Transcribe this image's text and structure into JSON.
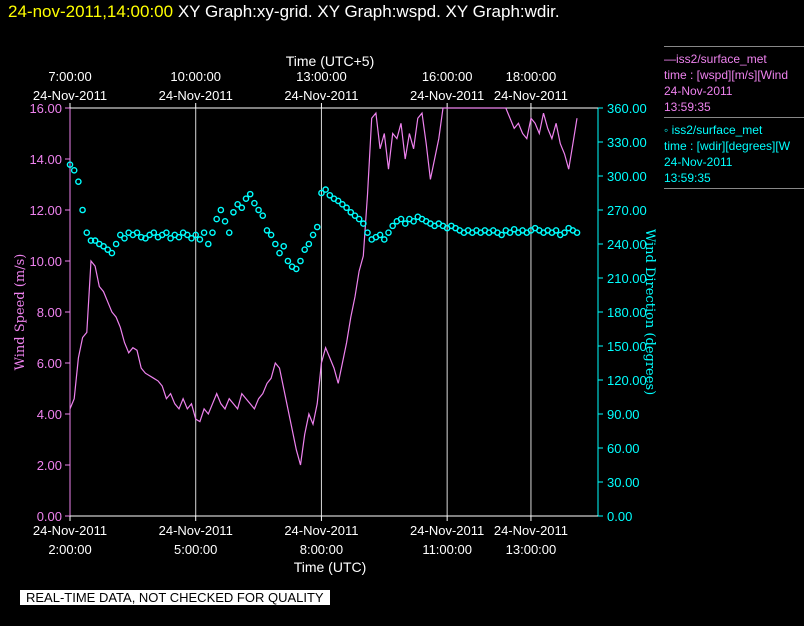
{
  "header": {
    "timestamp": "24-nov-2011,14:00:00",
    "graphs": "XY Graph:xy-grid.  XY Graph:wspd.  XY Graph:wdir."
  },
  "legend": {
    "s1_line1": "—iss2/surface_met",
    "s1_line2": "time : [wspd][m/s][Wind",
    "s1_line3": "24-Nov-2011",
    "s1_line4": "13:59:35",
    "s2_line1": "◦ iss2/surface_met",
    "s2_line2": "time : [wdir][degrees][W",
    "s2_line3": "24-Nov-2011",
    "s2_line4": "13:59:35"
  },
  "footer": {
    "quality_note": "REAL-TIME DATA, NOT CHECKED FOR QUALITY"
  },
  "colors": {
    "wspd": "#ee82ee",
    "wdir": "#00ffff",
    "timestamp": "#ffff00",
    "grid": "#ffffff"
  },
  "chart_data": {
    "type": "line",
    "title": "",
    "xlabel_bottom": "Time (UTC)",
    "xlabel_top": "Time (UTC+5)",
    "ylabel_left": "Wind Speed (m/s)",
    "ylabel_right": "Wind Direction (degrees)",
    "xlim_hours_utc": [
      2.0,
      14.6
    ],
    "ylim_left": [
      0,
      16
    ],
    "ylim_right": [
      0,
      360
    ],
    "x_ticks_bottom": [
      {
        "h": 2,
        "date": "24-Nov-2011",
        "time": "2:00:00"
      },
      {
        "h": 5,
        "date": "24-Nov-2011",
        "time": "5:00:00"
      },
      {
        "h": 8,
        "date": "24-Nov-2011",
        "time": "8:00:00"
      },
      {
        "h": 11,
        "date": "24-Nov-2011",
        "time": "11:00:00"
      },
      {
        "h": 13,
        "date": "24-Nov-2011",
        "time": "13:00:00"
      }
    ],
    "x_ticks_top": [
      {
        "h": 2,
        "date": "24-Nov-2011",
        "time": "7:00:00"
      },
      {
        "h": 5,
        "date": "24-Nov-2011",
        "time": "10:00:00"
      },
      {
        "h": 8,
        "date": "24-Nov-2011",
        "time": "13:00:00"
      },
      {
        "h": 11,
        "date": "24-Nov-2011",
        "time": "16:00:00"
      },
      {
        "h": 13,
        "date": "24-Nov-2011",
        "time": "18:00:00"
      }
    ],
    "y_ticks_left": [
      "0.00",
      "2.00",
      "4.00",
      "6.00",
      "8.00",
      "10.00",
      "12.00",
      "14.00",
      "16.00"
    ],
    "y_ticks_right": [
      "0.00",
      "30.00",
      "60.00",
      "90.00",
      "120.00",
      "150.00",
      "180.00",
      "210.00",
      "240.00",
      "270.00",
      "300.00",
      "330.00",
      "360.00"
    ],
    "grid": "vertical",
    "series": [
      {
        "name": "iss2/surface_met time : [wspd][m/s]",
        "axis": "left",
        "points": [
          [
            2.0,
            4.2
          ],
          [
            2.1,
            4.6
          ],
          [
            2.2,
            6.2
          ],
          [
            2.3,
            7.0
          ],
          [
            2.4,
            7.2
          ],
          [
            2.5,
            10.0
          ],
          [
            2.6,
            9.8
          ],
          [
            2.7,
            9.0
          ],
          [
            2.8,
            8.8
          ],
          [
            2.9,
            8.4
          ],
          [
            3.0,
            8.0
          ],
          [
            3.1,
            7.8
          ],
          [
            3.2,
            7.4
          ],
          [
            3.3,
            6.8
          ],
          [
            3.4,
            6.4
          ],
          [
            3.5,
            6.6
          ],
          [
            3.6,
            6.5
          ],
          [
            3.7,
            5.8
          ],
          [
            3.8,
            5.6
          ],
          [
            3.9,
            5.5
          ],
          [
            4.0,
            5.4
          ],
          [
            4.1,
            5.3
          ],
          [
            4.2,
            5.1
          ],
          [
            4.3,
            4.6
          ],
          [
            4.4,
            4.8
          ],
          [
            4.5,
            4.4
          ],
          [
            4.6,
            4.2
          ],
          [
            4.7,
            4.6
          ],
          [
            4.8,
            4.2
          ],
          [
            4.9,
            4.4
          ],
          [
            5.0,
            3.8
          ],
          [
            5.1,
            3.7
          ],
          [
            5.2,
            4.2
          ],
          [
            5.3,
            4.0
          ],
          [
            5.4,
            4.4
          ],
          [
            5.5,
            4.8
          ],
          [
            5.6,
            4.4
          ],
          [
            5.7,
            4.2
          ],
          [
            5.8,
            4.6
          ],
          [
            5.9,
            4.4
          ],
          [
            6.0,
            4.2
          ],
          [
            6.1,
            4.8
          ],
          [
            6.2,
            4.6
          ],
          [
            6.3,
            4.4
          ],
          [
            6.4,
            4.2
          ],
          [
            6.5,
            4.6
          ],
          [
            6.6,
            4.8
          ],
          [
            6.7,
            5.2
          ],
          [
            6.8,
            5.4
          ],
          [
            6.9,
            6.0
          ],
          [
            7.0,
            5.8
          ],
          [
            7.1,
            5.0
          ],
          [
            7.2,
            4.2
          ],
          [
            7.3,
            3.4
          ],
          [
            7.4,
            2.6
          ],
          [
            7.5,
            2.0
          ],
          [
            7.6,
            3.2
          ],
          [
            7.7,
            4.0
          ],
          [
            7.8,
            3.6
          ],
          [
            7.9,
            4.4
          ],
          [
            8.0,
            6.0
          ],
          [
            8.1,
            6.6
          ],
          [
            8.2,
            6.2
          ],
          [
            8.3,
            5.8
          ],
          [
            8.4,
            5.2
          ],
          [
            8.5,
            6.0
          ],
          [
            8.6,
            6.8
          ],
          [
            8.7,
            7.8
          ],
          [
            8.8,
            8.6
          ],
          [
            8.9,
            9.6
          ],
          [
            9.0,
            10.2
          ],
          [
            9.1,
            12.6
          ],
          [
            9.2,
            15.6
          ],
          [
            9.3,
            15.8
          ],
          [
            9.4,
            14.4
          ],
          [
            9.5,
            15.0
          ],
          [
            9.6,
            13.6
          ],
          [
            9.7,
            15.0
          ],
          [
            9.8,
            14.8
          ],
          [
            9.9,
            15.4
          ],
          [
            10.0,
            14.0
          ],
          [
            10.1,
            15.0
          ],
          [
            10.2,
            14.4
          ],
          [
            10.3,
            15.6
          ],
          [
            10.4,
            15.8
          ],
          [
            10.5,
            14.6
          ],
          [
            10.6,
            13.2
          ],
          [
            10.7,
            14.0
          ],
          [
            10.8,
            14.8
          ],
          [
            10.9,
            16.0
          ],
          [
            11.0,
            16.0
          ],
          [
            11.1,
            16.0
          ],
          [
            11.2,
            16.0
          ],
          [
            11.3,
            16.0
          ],
          [
            11.4,
            16.0
          ],
          [
            11.5,
            16.0
          ],
          [
            11.6,
            16.0
          ],
          [
            11.7,
            16.0
          ],
          [
            11.8,
            16.0
          ],
          [
            11.9,
            16.0
          ],
          [
            12.0,
            16.0
          ],
          [
            12.1,
            16.0
          ],
          [
            12.2,
            16.0
          ],
          [
            12.3,
            16.0
          ],
          [
            12.4,
            16.0
          ],
          [
            12.5,
            15.6
          ],
          [
            12.6,
            15.2
          ],
          [
            12.7,
            15.4
          ],
          [
            12.8,
            15.0
          ],
          [
            12.9,
            14.8
          ],
          [
            13.0,
            15.6
          ],
          [
            13.1,
            15.4
          ],
          [
            13.2,
            15.0
          ],
          [
            13.3,
            15.8
          ],
          [
            13.4,
            15.2
          ],
          [
            13.5,
            14.8
          ],
          [
            13.6,
            15.4
          ],
          [
            13.7,
            14.6
          ],
          [
            13.8,
            14.2
          ],
          [
            13.9,
            13.6
          ],
          [
            14.0,
            14.6
          ],
          [
            14.1,
            15.6
          ]
        ]
      },
      {
        "name": "iss2/surface_met time : [wdir][degrees]",
        "axis": "right",
        "points": [
          [
            2.0,
            310
          ],
          [
            2.1,
            305
          ],
          [
            2.2,
            295
          ],
          [
            2.3,
            270
          ],
          [
            2.4,
            250
          ],
          [
            2.5,
            243
          ],
          [
            2.6,
            243
          ],
          [
            2.7,
            240
          ],
          [
            2.8,
            238
          ],
          [
            2.9,
            235
          ],
          [
            3.0,
            232
          ],
          [
            3.1,
            240
          ],
          [
            3.2,
            248
          ],
          [
            3.3,
            245
          ],
          [
            3.4,
            250
          ],
          [
            3.5,
            248
          ],
          [
            3.6,
            250
          ],
          [
            3.7,
            246
          ],
          [
            3.8,
            245
          ],
          [
            3.9,
            248
          ],
          [
            4.0,
            250
          ],
          [
            4.1,
            246
          ],
          [
            4.2,
            248
          ],
          [
            4.3,
            250
          ],
          [
            4.4,
            245
          ],
          [
            4.5,
            248
          ],
          [
            4.6,
            246
          ],
          [
            4.7,
            250
          ],
          [
            4.8,
            248
          ],
          [
            4.9,
            245
          ],
          [
            5.0,
            248
          ],
          [
            5.1,
            244
          ],
          [
            5.2,
            250
          ],
          [
            5.3,
            240
          ],
          [
            5.4,
            250
          ],
          [
            5.5,
            262
          ],
          [
            5.6,
            270
          ],
          [
            5.7,
            260
          ],
          [
            5.8,
            250
          ],
          [
            5.9,
            268
          ],
          [
            6.0,
            275
          ],
          [
            6.1,
            272
          ],
          [
            6.2,
            280
          ],
          [
            6.3,
            284
          ],
          [
            6.4,
            276
          ],
          [
            6.5,
            270
          ],
          [
            6.6,
            265
          ],
          [
            6.7,
            252
          ],
          [
            6.8,
            248
          ],
          [
            6.9,
            240
          ],
          [
            7.0,
            232
          ],
          [
            7.1,
            238
          ],
          [
            7.2,
            225
          ],
          [
            7.3,
            220
          ],
          [
            7.4,
            218
          ],
          [
            7.5,
            225
          ],
          [
            7.6,
            235
          ],
          [
            7.7,
            240
          ],
          [
            7.8,
            248
          ],
          [
            7.9,
            255
          ],
          [
            8.0,
            285
          ],
          [
            8.1,
            288
          ],
          [
            8.2,
            283
          ],
          [
            8.3,
            280
          ],
          [
            8.4,
            278
          ],
          [
            8.5,
            275
          ],
          [
            8.6,
            272
          ],
          [
            8.7,
            268
          ],
          [
            8.8,
            265
          ],
          [
            8.9,
            262
          ],
          [
            9.0,
            258
          ],
          [
            9.1,
            250
          ],
          [
            9.2,
            244
          ],
          [
            9.3,
            246
          ],
          [
            9.4,
            248
          ],
          [
            9.5,
            244
          ],
          [
            9.6,
            250
          ],
          [
            9.7,
            256
          ],
          [
            9.8,
            260
          ],
          [
            9.9,
            262
          ],
          [
            10.0,
            258
          ],
          [
            10.1,
            262
          ],
          [
            10.2,
            260
          ],
          [
            10.3,
            264
          ],
          [
            10.4,
            262
          ],
          [
            10.5,
            260
          ],
          [
            10.6,
            258
          ],
          [
            10.7,
            256
          ],
          [
            10.8,
            258
          ],
          [
            10.9,
            256
          ],
          [
            11.0,
            254
          ],
          [
            11.1,
            256
          ],
          [
            11.2,
            254
          ],
          [
            11.3,
            252
          ],
          [
            11.4,
            250
          ],
          [
            11.5,
            252
          ],
          [
            11.6,
            250
          ],
          [
            11.7,
            252
          ],
          [
            11.8,
            250
          ],
          [
            11.9,
            252
          ],
          [
            12.0,
            250
          ],
          [
            12.1,
            252
          ],
          [
            12.2,
            250
          ],
          [
            12.3,
            248
          ],
          [
            12.4,
            252
          ],
          [
            12.5,
            250
          ],
          [
            12.6,
            253
          ],
          [
            12.7,
            250
          ],
          [
            12.8,
            252
          ],
          [
            12.9,
            250
          ],
          [
            13.0,
            252
          ],
          [
            13.1,
            254
          ],
          [
            13.2,
            252
          ],
          [
            13.3,
            250
          ],
          [
            13.4,
            252
          ],
          [
            13.5,
            250
          ],
          [
            13.6,
            252
          ],
          [
            13.7,
            248
          ],
          [
            13.8,
            250
          ],
          [
            13.9,
            254
          ],
          [
            14.0,
            252
          ],
          [
            14.1,
            250
          ]
        ]
      }
    ]
  }
}
